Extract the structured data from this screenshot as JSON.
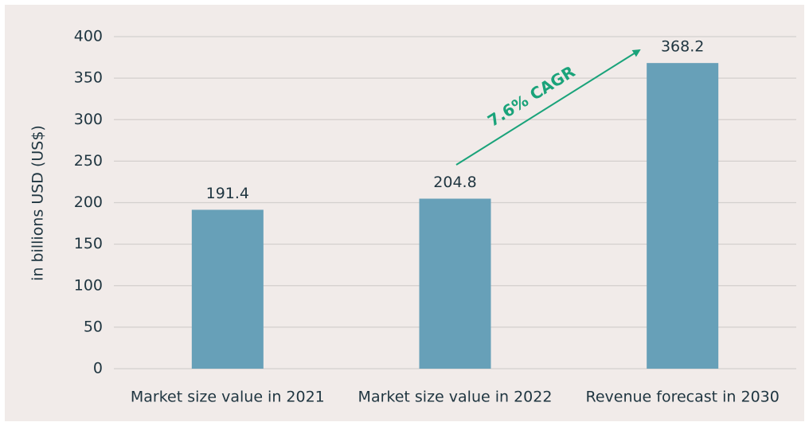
{
  "chart_data": {
    "type": "bar",
    "y_label": "in billions USD (US$)",
    "categories": [
      "Market size value in 2021",
      "Market size value in 2022",
      "Revenue forecast in 2030"
    ],
    "values": [
      191.4,
      204.8,
      368.2
    ],
    "color": "#67a0b8",
    "ylim": [
      0,
      400
    ],
    "yticks": [
      0,
      50,
      100,
      150,
      200,
      250,
      300,
      350,
      400
    ],
    "grid": true,
    "annotations": [
      "7.6% CAGR"
    ]
  }
}
